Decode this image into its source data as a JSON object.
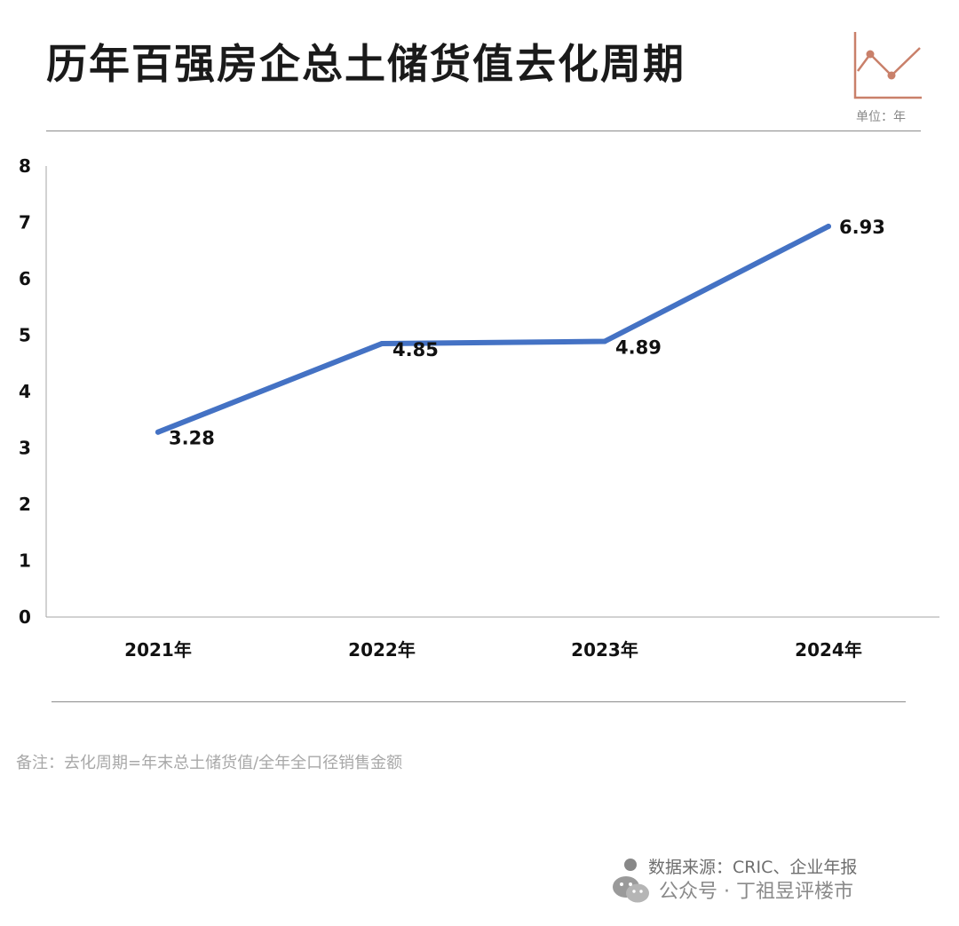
{
  "header": {
    "title": "历年百强房企总土储货值去化周期",
    "unit": "单位：年"
  },
  "footer": {
    "note": "备注：去化周期=年末总土储货值/全年全口径销售金额",
    "source": "数据来源：CRIC、企业年报",
    "account": "公众号 · 丁祖昱评楼市"
  },
  "colors": {
    "line": "#4472C4",
    "logo": "#C9806A"
  },
  "chart_data": {
    "type": "line",
    "categories": [
      "2021年",
      "2022年",
      "2023年",
      "2024年"
    ],
    "series": [
      {
        "values": [
          3.28,
          4.85,
          4.89,
          6.93
        ]
      }
    ],
    "data_labels": [
      "3.28",
      "4.85",
      "4.89",
      "6.93"
    ],
    "ylim": [
      0,
      8
    ],
    "yticks": [
      0,
      1,
      2,
      3,
      4,
      5,
      6,
      7,
      8
    ],
    "grid": false
  }
}
